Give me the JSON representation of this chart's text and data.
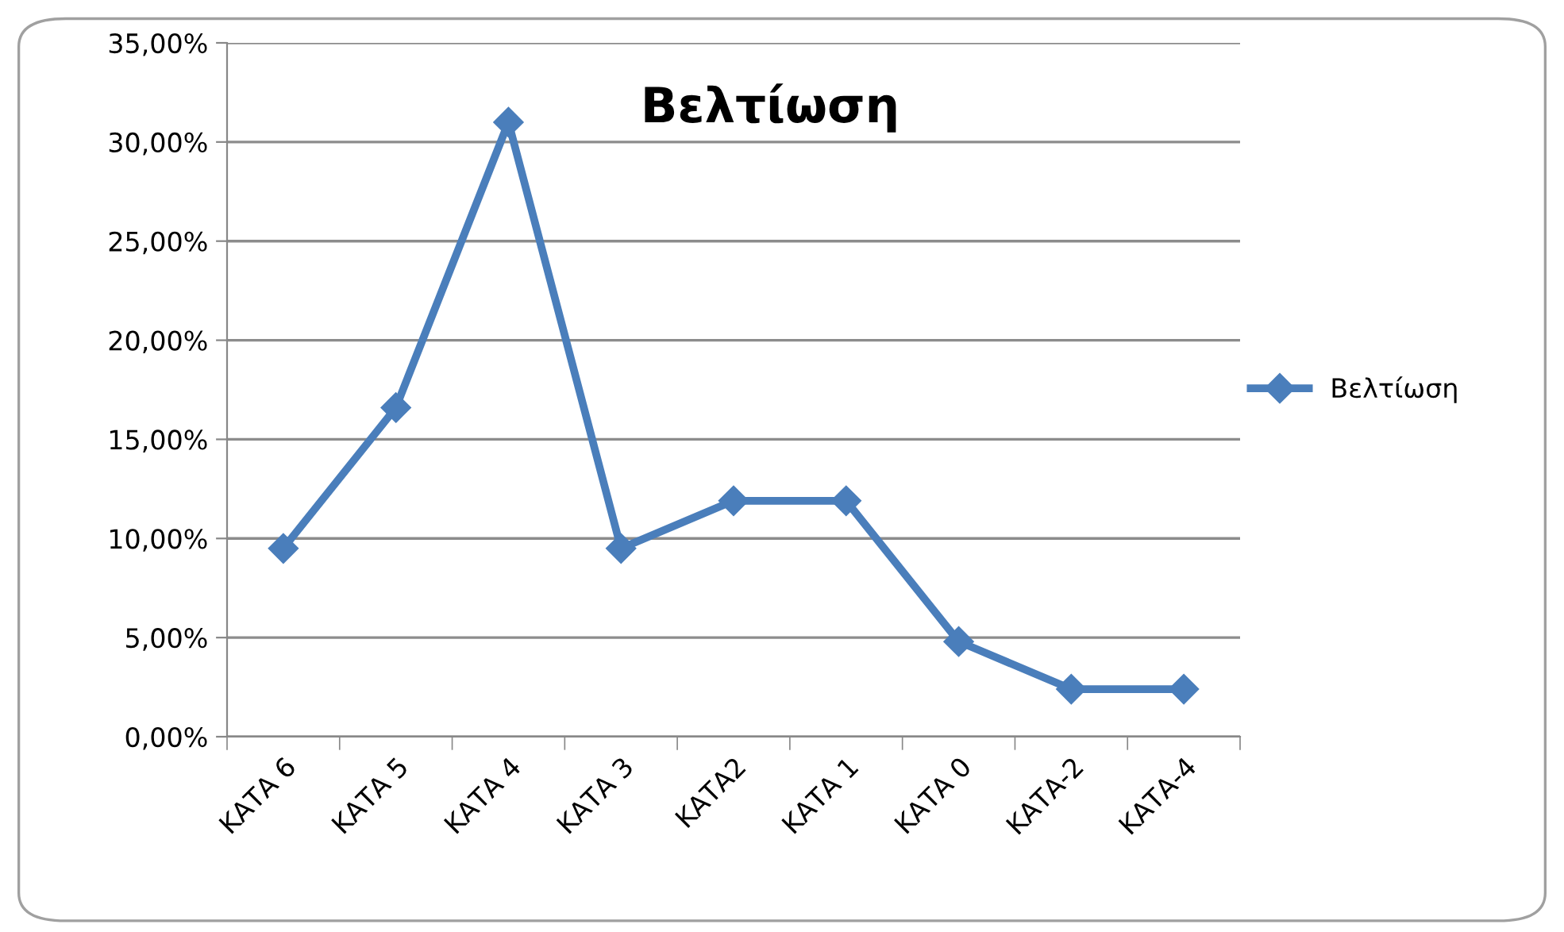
{
  "chart_data": {
    "type": "line",
    "title": "Βελτίωση",
    "categories": [
      "ΚΑΤΑ 6",
      "ΚΑΤΑ 5",
      "ΚΑΤΑ 4",
      "ΚΑΤΑ 3",
      "ΚΑΤΑ2",
      "ΚΑΤΑ 1",
      "ΚΑΤΑ 0",
      "ΚΑΤΑ-2",
      "ΚΑΤΑ-4"
    ],
    "series": [
      {
        "name": "Βελτίωση",
        "color": "#4a7ebb",
        "values": [
          9.5,
          16.6,
          31.0,
          9.5,
          11.9,
          11.9,
          4.8,
          2.4,
          2.4
        ]
      }
    ],
    "ylim": [
      0,
      35
    ],
    "yticks": [
      {
        "value": 0,
        "label": "0,00%"
      },
      {
        "value": 5,
        "label": "5,00%"
      },
      {
        "value": 10,
        "label": "10,00%"
      },
      {
        "value": 15,
        "label": "15,00%"
      },
      {
        "value": 20,
        "label": "20,00%"
      },
      {
        "value": 25,
        "label": "25,00%"
      },
      {
        "value": 30,
        "label": "30,00%"
      },
      {
        "value": 35,
        "label": "35,00%"
      }
    ],
    "grid": "y",
    "legend": "right",
    "marker": "diamond",
    "line_style": "solid"
  }
}
